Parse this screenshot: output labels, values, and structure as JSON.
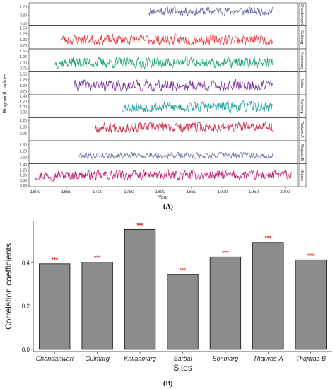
{
  "panel_labels": {
    "a": "(A)",
    "b": "(B)"
  },
  "colors": {
    "Chandanwari": "#5a5f9c",
    "Gulmarg": "#e8323a",
    "Khilanmarg": "#12a06e",
    "Sarbal": "#7a2e9c",
    "Sonmarg": "#139c94",
    "Thajwas-A": "#cc2448",
    "Thajwas-B": "#6a6ea8",
    "Hirpora": "#c0186c",
    "bar_fill": "#8c8c8c",
    "significance": "#e0202a"
  },
  "chart_data": [
    {
      "type": "line",
      "xlabel": "Year",
      "ylabel": "Ring-width indices",
      "xlim": [
        1590,
        2020
      ],
      "x_ticks": [
        1600,
        1650,
        1700,
        1750,
        1800,
        1850,
        1900,
        1950,
        2000
      ],
      "series": [
        {
          "name": "Chandanwari",
          "start": 1780,
          "end": 1980,
          "ylim": [
            0.3,
            1.4
          ],
          "y_ticks": [
            "0.40",
            "0.80",
            "1.20"
          ],
          "y_tick_values": [
            0.4,
            0.8,
            1.2
          ],
          "amp": 0.12,
          "seed": 11
        },
        {
          "name": "Gulmarg",
          "start": 1640,
          "end": 1980,
          "ylim": [
            0.6,
            1.6
          ],
          "y_ticks": [
            "0.75",
            "1.00",
            "1.25",
            "1.50"
          ],
          "y_tick_values": [
            0.75,
            1.0,
            1.25,
            1.5
          ],
          "amp": 0.13,
          "seed": 23
        },
        {
          "name": "Khilanmarg",
          "start": 1632,
          "end": 1980,
          "ylim": [
            0.6,
            1.6
          ],
          "y_ticks": [
            "0.75",
            "1.00",
            "1.25",
            "1.50"
          ],
          "y_tick_values": [
            0.75,
            1.0,
            1.25,
            1.5
          ],
          "amp": 0.14,
          "seed": 37
        },
        {
          "name": "Sarbal",
          "start": 1662,
          "end": 1980,
          "ylim": [
            0.6,
            1.6
          ],
          "y_ticks": [
            "0.75",
            "1.00",
            "1.25",
            "1.50"
          ],
          "y_tick_values": [
            0.75,
            1.0,
            1.25,
            1.5
          ],
          "amp": 0.14,
          "seed": 41
        },
        {
          "name": "Sonmarg",
          "start": 1740,
          "end": 1980,
          "ylim": [
            0.6,
            1.45
          ],
          "y_ticks": [
            "0.80",
            "1.00",
            "1.20",
            "1.40"
          ],
          "y_tick_values": [
            0.8,
            1.0,
            1.2,
            1.4
          ],
          "amp": 0.12,
          "seed": 53
        },
        {
          "name": "Thajwas-A",
          "start": 1695,
          "end": 1980,
          "ylim": [
            0.5,
            1.35
          ],
          "y_ticks": [
            "0.75",
            "1.00",
            "1.25"
          ],
          "y_tick_values": [
            0.75,
            1.0,
            1.25
          ],
          "amp": 0.11,
          "seed": 67
        },
        {
          "name": "Thajwas-B",
          "start": 1670,
          "end": 1980,
          "ylim": [
            0.6,
            1.7
          ],
          "y_ticks": [
            "0.90",
            "1.20",
            "1.50"
          ],
          "y_tick_values": [
            0.9,
            1.2,
            1.5
          ],
          "amp": 0.09,
          "seed": 79
        },
        {
          "name": "Hirpora",
          "start": 1600,
          "end": 2010,
          "ylim": [
            0.55,
            1.45
          ],
          "y_ticks": [
            "0.60",
            "0.80",
            "1.00",
            "1.20",
            "1.40"
          ],
          "y_tick_values": [
            0.6,
            0.8,
            1.0,
            1.2,
            1.4
          ],
          "amp": 0.11,
          "seed": 97
        }
      ]
    },
    {
      "type": "bar",
      "xlabel": "Sites",
      "ylabel": "Correlation coefficients",
      "categories": [
        "Chandanwari",
        "Gulmarg",
        "Khilanmarg",
        "Sarbal",
        "Sonmarg",
        "Thajwas-A",
        "Thajwas-B"
      ],
      "values": [
        0.395,
        0.402,
        0.553,
        0.345,
        0.426,
        0.493,
        0.413
      ],
      "annotations": [
        "***",
        "***",
        "***",
        "***",
        "***",
        "***",
        "***"
      ],
      "ylim": [
        -0.01,
        0.59
      ],
      "y_ticks": [
        "0.0",
        "0.2",
        "0.4"
      ],
      "y_tick_values": [
        0.0,
        0.2,
        0.4
      ]
    }
  ]
}
